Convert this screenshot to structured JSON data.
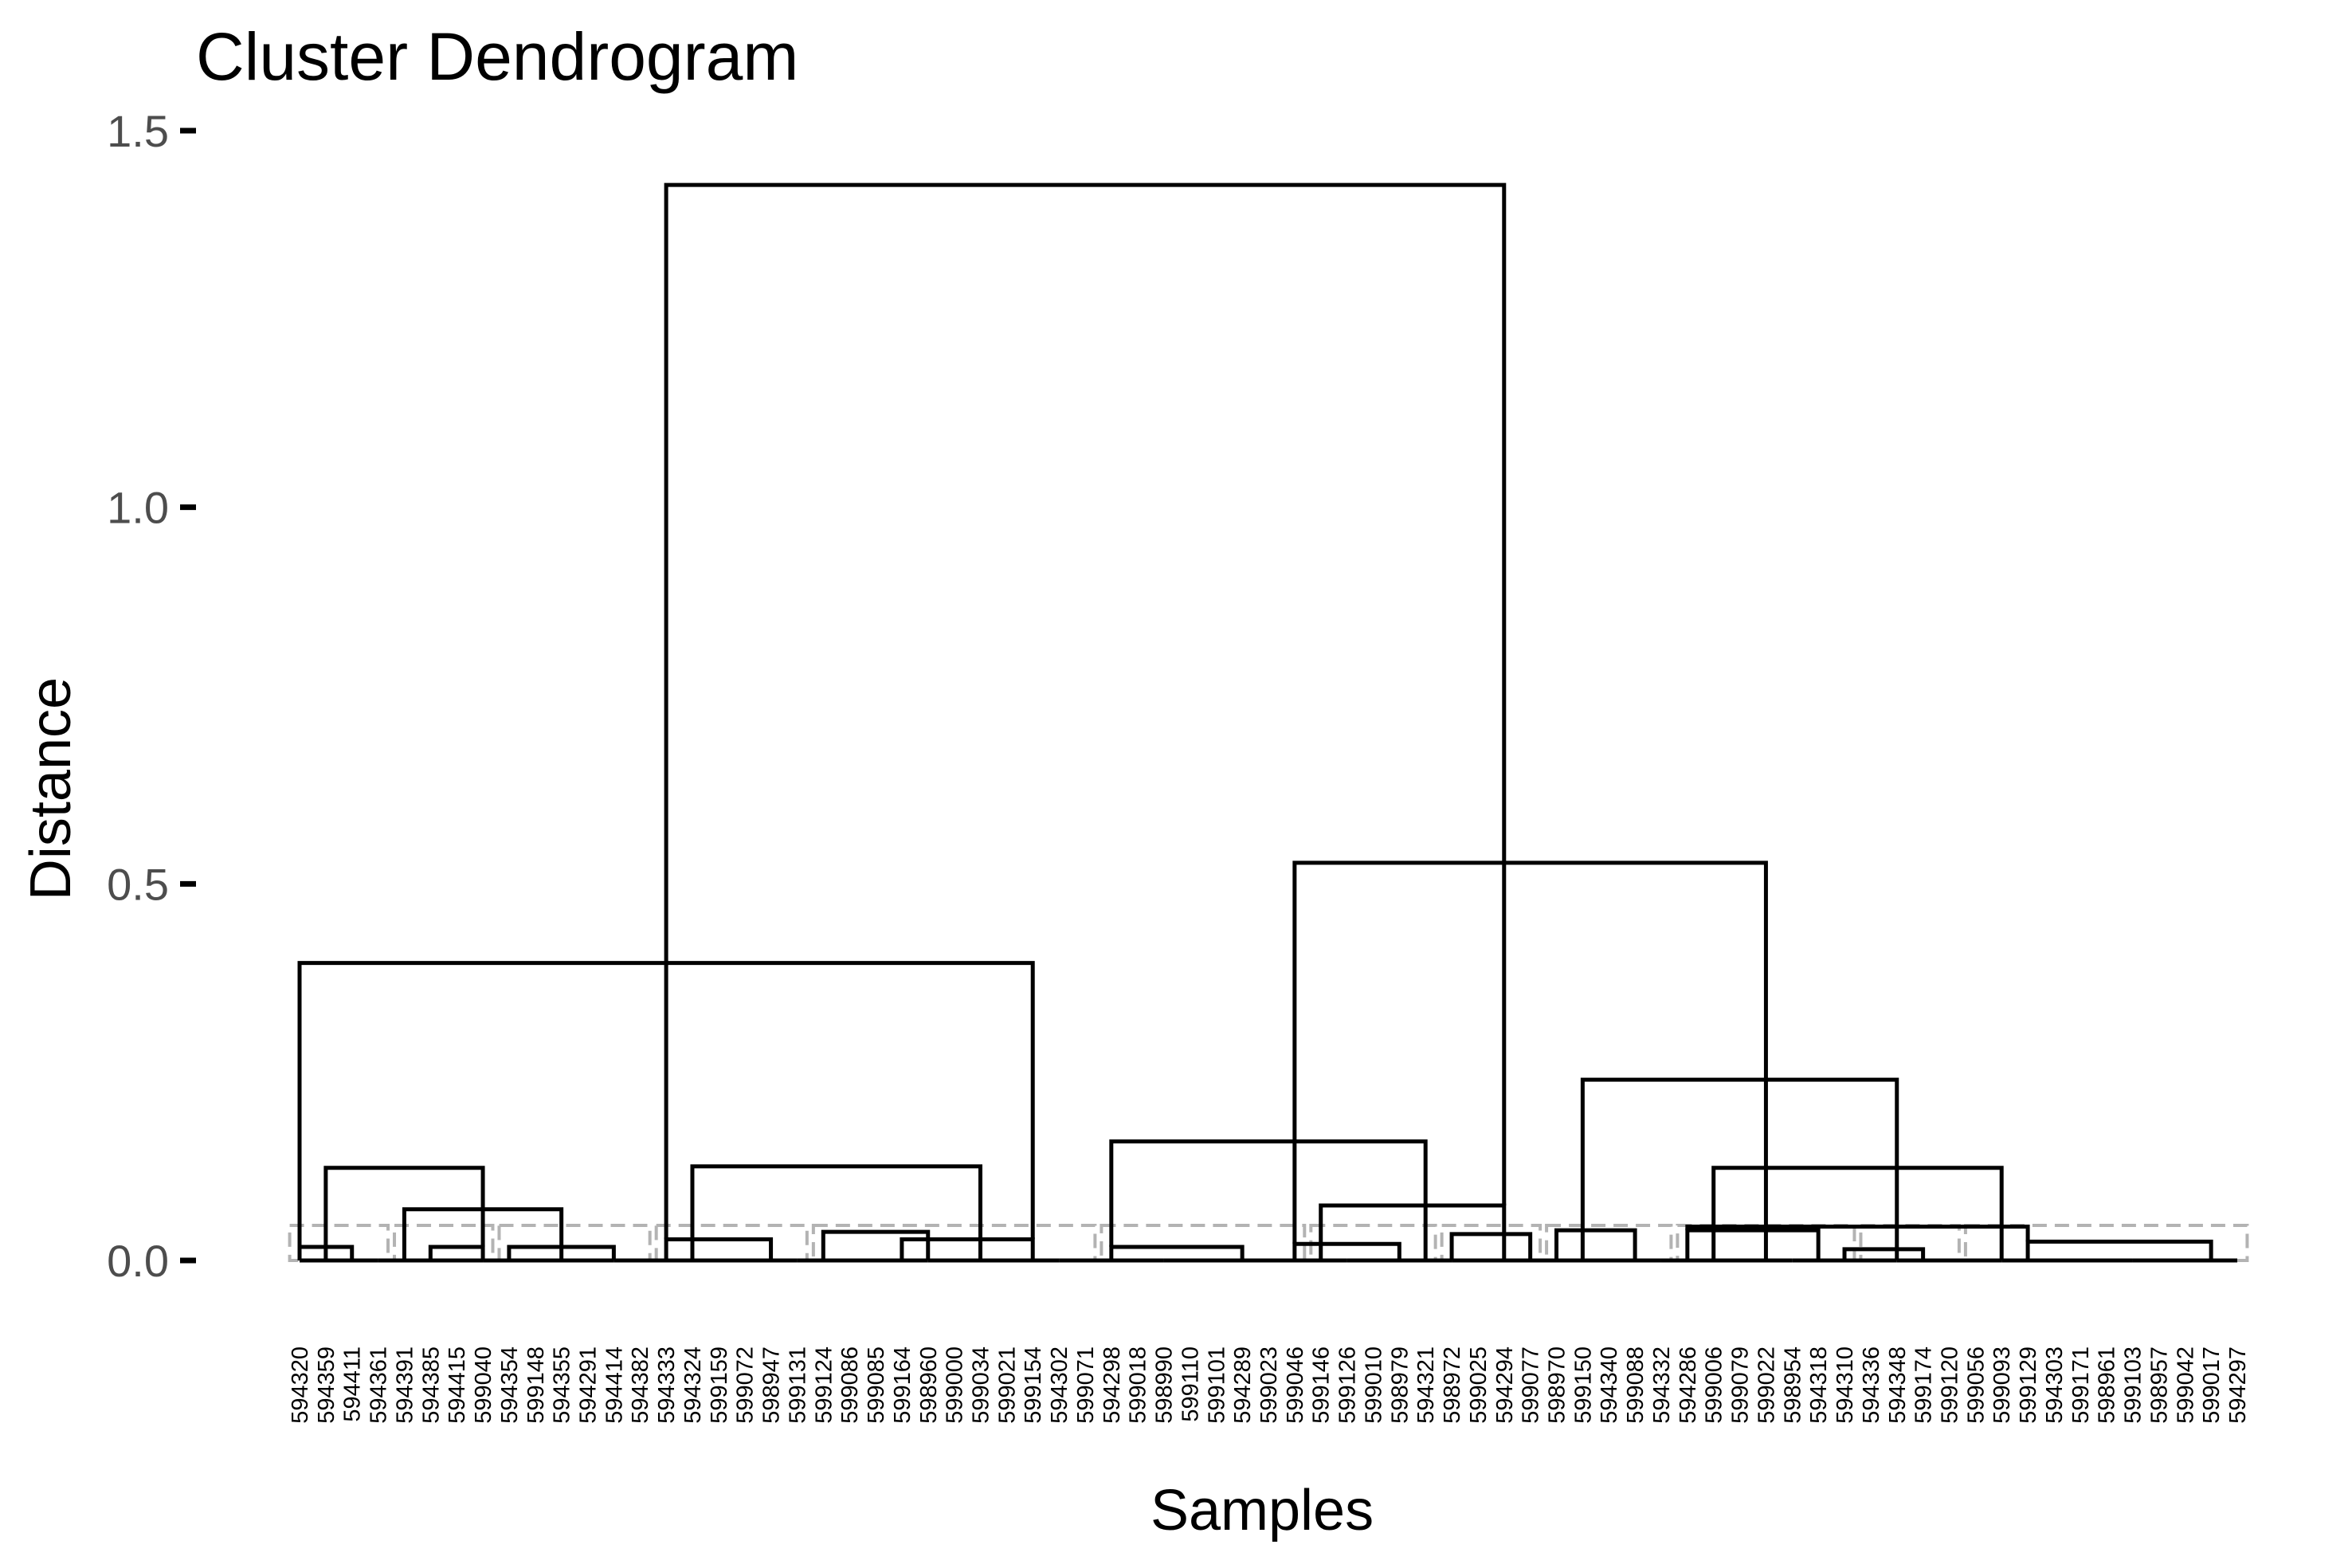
{
  "chart_data": {
    "type": "dendrogram",
    "title": "Cluster Dendrogram",
    "xlabel": "Samples",
    "ylabel": "Distance",
    "ylim": [
      0,
      1.5
    ],
    "yticks": [
      "0.0",
      "0.5",
      "1.0",
      "1.5"
    ],
    "grid": false,
    "legend": "none",
    "colors": {
      "branch": "#000000",
      "cluster_box": "#b3b3b3",
      "tick_label": "#4d4d4d"
    },
    "leaves": [
      "594320",
      "594359",
      "594411",
      "594361",
      "594391",
      "594385",
      "594415",
      "599040",
      "594354",
      "599148",
      "594355",
      "594291",
      "594414",
      "594382",
      "594333",
      "594324",
      "599159",
      "599072",
      "598947",
      "599131",
      "599124",
      "599086",
      "599085",
      "599164",
      "598960",
      "599000",
      "599034",
      "599021",
      "599154",
      "594302",
      "599071",
      "594298",
      "599018",
      "598990",
      "599110",
      "599101",
      "594289",
      "599023",
      "599046",
      "599146",
      "599126",
      "599010",
      "598979",
      "594321",
      "598972",
      "599025",
      "594294",
      "599077",
      "598970",
      "599150",
      "594340",
      "599088",
      "594332",
      "594286",
      "599006",
      "599079",
      "599022",
      "598954",
      "594318",
      "594310",
      "594336",
      "594348",
      "599174",
      "599120",
      "599056",
      "599093",
      "599129",
      "594303",
      "599171",
      "598961",
      "599103",
      "598957",
      "599042",
      "599017",
      "594297"
    ],
    "merges": [
      {
        "l": 0,
        "r": 3,
        "h": 0.0
      },
      {
        "l": 3,
        "r": 7,
        "h": 0.0
      },
      {
        "l": 7,
        "r": 12,
        "h": 0.0
      },
      {
        "l": 12,
        "r": 19,
        "h": 0.0
      },
      {
        "l": 19,
        "r": 24,
        "h": 0.0
      },
      {
        "l": 24,
        "r": 29,
        "h": 0.0
      },
      {
        "l": 29,
        "r": 33,
        "h": 0.0
      },
      {
        "l": 33,
        "r": 40,
        "h": 0.0
      },
      {
        "l": 40,
        "r": 44,
        "h": 0.0
      },
      {
        "l": 44,
        "r": 48,
        "h": 0.0
      },
      {
        "l": 48,
        "r": 52,
        "h": 0.0
      },
      {
        "l": 52,
        "r": 57,
        "h": 0.0
      },
      {
        "l": 57,
        "r": 61,
        "h": 0.0
      },
      {
        "l": 61,
        "r": 65,
        "h": 0.0
      },
      {
        "l": 65,
        "r": 70,
        "h": 0.0
      },
      {
        "l": 70,
        "r": 74,
        "h": 0.0
      },
      {
        "l": 0,
        "r": 2,
        "h": 0.018
      },
      {
        "l": 5,
        "r": 7,
        "h": 0.018
      },
      {
        "l": 8,
        "r": 12,
        "h": 0.018
      },
      {
        "l": 14,
        "r": 18,
        "h": 0.028
      },
      {
        "l": 20,
        "r": 24,
        "h": 0.038
      },
      {
        "l": 23,
        "r": 28,
        "h": 0.028
      },
      {
        "l": 31,
        "r": 36,
        "h": 0.018
      },
      {
        "l": 38,
        "r": 42,
        "h": 0.022
      },
      {
        "l": 44,
        "r": 47,
        "h": 0.035
      },
      {
        "l": 48,
        "r": 51,
        "h": 0.04
      },
      {
        "l": 53,
        "r": 58,
        "h": 0.04
      },
      {
        "l": 59,
        "r": 62,
        "h": 0.015
      },
      {
        "l": 66,
        "r": 73,
        "h": 0.025
      },
      {
        "l": 4,
        "r": 10,
        "h": 0.068
      },
      {
        "l": 1,
        "r": 7,
        "h": 0.123
      },
      {
        "l": 15,
        "r": 26,
        "h": 0.125
      },
      {
        "l": 0,
        "r": 28,
        "h": 0.395
      },
      {
        "l": 39,
        "r": 46,
        "h": 0.073
      },
      {
        "l": 31,
        "r": 43,
        "h": 0.158
      },
      {
        "l": 53,
        "r": 66,
        "h": 0.045
      },
      {
        "l": 54,
        "r": 65,
        "h": 0.123
      },
      {
        "l": 49,
        "r": 61,
        "h": 0.24
      },
      {
        "l": 38,
        "r": 56,
        "h": 0.528
      },
      {
        "l": 14,
        "r": 46,
        "h": 1.428
      }
    ]
  }
}
